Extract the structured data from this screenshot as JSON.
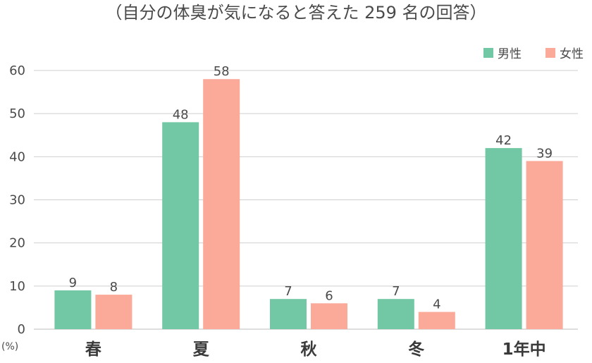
{
  "chart_data": {
    "type": "bar",
    "title": "（自分の体臭が気になると答えた 259 名の回答）",
    "unit_label": "(%)",
    "categories": [
      "春",
      "夏",
      "秋",
      "冬",
      "1年中"
    ],
    "series": [
      {
        "name": "男性",
        "color": "#72c8a4",
        "values": [
          9,
          48,
          7,
          7,
          42
        ]
      },
      {
        "name": "女性",
        "color": "#fbaa9a",
        "values": [
          8,
          58,
          6,
          4,
          39
        ]
      }
    ],
    "ylim": [
      0,
      60
    ],
    "yticks": [
      0,
      10,
      20,
      30,
      40,
      50,
      60
    ],
    "grid": true,
    "legend_position": "top-right"
  }
}
